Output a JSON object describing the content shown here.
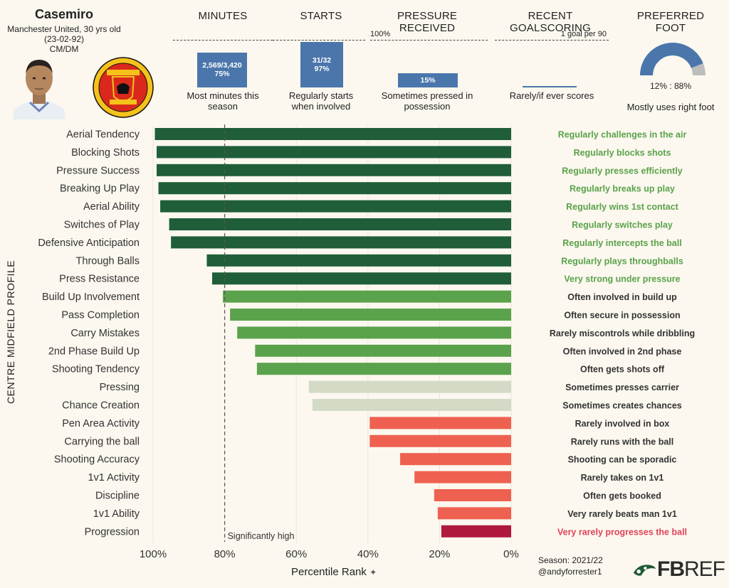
{
  "player": {
    "name": "Casemiro",
    "subtitle": "Manchester United, 30 yrs old (23-02-92)",
    "position": "CM/DM",
    "photo_icon": "player-headshot",
    "crest_icon": "manchester-united-crest"
  },
  "header_metrics": {
    "minutes": {
      "label": "MINUTES",
      "value": "2,569/3,420",
      "pct_text": "75%",
      "pct": 75,
      "caption_1": "Most minutes this",
      "caption_2": "season"
    },
    "starts": {
      "label": "STARTS",
      "value": "31/32",
      "pct_text": "97%",
      "pct": 97,
      "caption_1": "Regularly starts",
      "caption_2": "when involved"
    },
    "pressure": {
      "label": "PRESSURE RECEIVED",
      "max_label": "100%",
      "pct_text": "15%",
      "pct": 15,
      "caption_1": "Sometimes pressed in",
      "caption_2": "possession"
    },
    "goalscoring": {
      "label": "RECENT GOALSCORING",
      "max_label": "1 goal per 90",
      "value": 0.05,
      "caption": "Rarely/if ever scores"
    },
    "foot": {
      "label": "PREFERRED FOOT",
      "ratio": "12% : 88%",
      "left_pct": 12,
      "right_pct": 88,
      "caption": "Mostly uses right foot"
    }
  },
  "chart_data": {
    "type": "bar",
    "orientation": "horizontal",
    "title": "CENTRE MIDFIELD PROFILE",
    "xlabel": "Percentile Rank",
    "xlim": [
      100,
      0
    ],
    "xticks": [
      "100%",
      "80%",
      "60%",
      "40%",
      "20%",
      "0%"
    ],
    "threshold": {
      "value": 80,
      "label": "Significantly high"
    },
    "categories": [
      "Aerial Tendency",
      "Blocking Shots",
      "Pressure Success",
      "Breaking Up Play",
      "Aerial Ability",
      "Switches of Play",
      "Defensive Anticipation",
      "Through Balls",
      "Press Resistance",
      "Build Up Involvement",
      "Pass Completion",
      "Carry Mistakes",
      "2nd Phase Build Up",
      "Shooting Tendency",
      "Pressing",
      "Chance Creation",
      "Pen Area Activity",
      "Carrying the ball",
      "Shooting Accuracy",
      "1v1 Activity",
      "Discipline",
      "1v1 Ability",
      "Progression"
    ],
    "values": [
      99.5,
      99,
      99,
      98.5,
      98,
      95.5,
      95,
      85,
      83.5,
      80.5,
      78.5,
      76.5,
      71.5,
      71,
      56.5,
      55.5,
      39.5,
      39.5,
      31,
      27,
      21.5,
      20.5,
      19.5
    ],
    "descriptions": [
      "Regularly challenges in the air",
      "Regularly blocks shots",
      "Regularly presses efficiently",
      "Regularly breaks up play",
      "Regularly wins 1st contact",
      "Regularly switches play",
      "Regularly intercepts the ball",
      "Regularly plays throughballs",
      "Very strong under pressure",
      "Often involved in build up",
      "Often secure in possession",
      "Rarely miscontrols while dribbling",
      "Often involved in 2nd phase",
      "Often gets shots off",
      "Sometimes presses carrier",
      "Sometimes creates chances",
      "Rarely involved in box",
      "Rarely runs with the ball",
      "Shooting can be sporadic",
      "Rarely takes on 1v1",
      "Often gets booked",
      "Very rarely beats man 1v1",
      "Very rarely progresses the ball"
    ],
    "tiers": [
      "very-high",
      "very-high",
      "very-high",
      "very-high",
      "very-high",
      "very-high",
      "very-high",
      "very-high",
      "very-high",
      "high",
      "high",
      "high",
      "high",
      "high",
      "mid",
      "mid",
      "low",
      "low",
      "low",
      "low",
      "low",
      "low",
      "very-low"
    ]
  },
  "colors": {
    "very-high": "#1f5e38",
    "high": "#5ba24c",
    "mid": "#d3dbc6",
    "low": "#ee6150",
    "very-low": "#b01a3e",
    "text-very-high": "#5aa24a",
    "text-default": "#333333",
    "text-very-low": "#e0425a",
    "metric-bar": "#4a76ab"
  },
  "footer": {
    "season": "Season: 2021/22",
    "handle": "@andyforrester1",
    "logo_prefix": "FB",
    "logo_suffix": "REF",
    "pin_icon": "pushpin-icon"
  }
}
